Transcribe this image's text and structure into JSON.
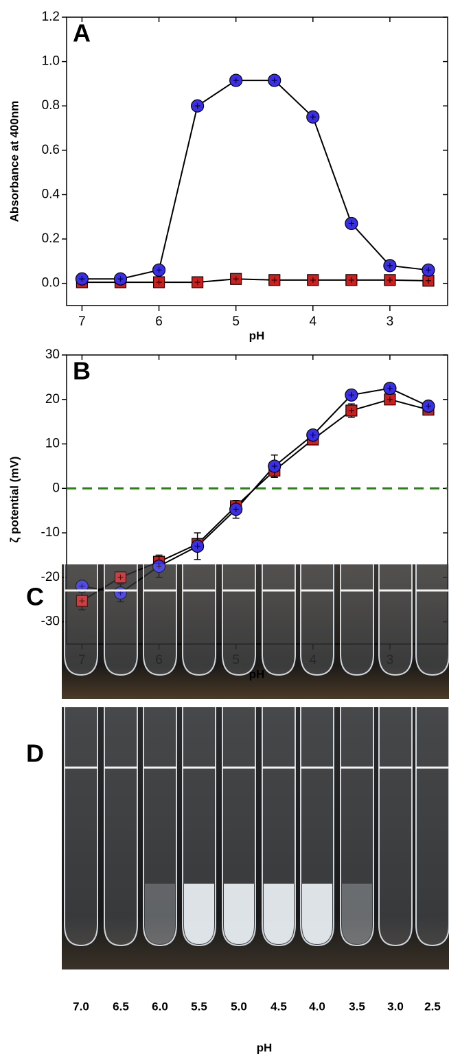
{
  "chart_data": [
    {
      "type": "line",
      "panel": "A",
      "x_label": "pH",
      "y_label": "Absorbance at 400nm",
      "x": [
        7,
        6.5,
        6,
        5.5,
        5,
        4.5,
        4,
        3.5,
        3,
        2.5
      ],
      "xlim": [
        7.2,
        2.25
      ],
      "xticks": [
        7,
        6,
        5,
        4,
        3
      ],
      "ylim": [
        -0.1,
        1.2
      ],
      "yticks": [
        {
          "value": 0,
          "label": "0.0"
        },
        0.2,
        0.4,
        0.6,
        0.8,
        {
          "value": 1,
          "label": "1.0"
        },
        1.2
      ],
      "series": [
        {
          "marker": "square",
          "color": "#cc2020",
          "values": [
            0.005,
            0.005,
            0.005,
            0.005,
            0.02,
            0.015,
            0.015,
            0.015,
            0.015,
            0.012
          ],
          "errors": [
            0.01,
            0.01,
            0.008,
            0.008,
            0.012,
            0.01,
            0.008,
            0.01,
            0.008,
            0.01
          ]
        },
        {
          "marker": "circle",
          "color": "#3a2fe6",
          "values": [
            0.02,
            0.02,
            0.06,
            0.8,
            0.915,
            0.915,
            0.75,
            0.27,
            0.08,
            0.06
          ],
          "errors": [
            0.01,
            0.01,
            0.01,
            0.015,
            0.02,
            0.02,
            0.015,
            0.012,
            0.01,
            0.01
          ]
        }
      ]
    },
    {
      "type": "line",
      "panel": "B",
      "x_label": "pH",
      "y_label": "ζ potential (mV)",
      "x": [
        7,
        6.5,
        6,
        5.5,
        5,
        4.5,
        4,
        3.5,
        3,
        2.5
      ],
      "xlim": [
        7.2,
        2.25
      ],
      "xticks": [
        7,
        6,
        5,
        4,
        3
      ],
      "ylim": [
        -35,
        30
      ],
      "yticks": [
        -30,
        -20,
        -10,
        0,
        10,
        20,
        30
      ],
      "refline": 0,
      "refline_color": "#2e7d1e",
      "series": [
        {
          "marker": "square",
          "color": "#cc2020",
          "values": [
            -25.3,
            -20,
            -16.5,
            -12.5,
            -4,
            4,
            11,
            17.5,
            20,
            17.7
          ],
          "errors": [
            2,
            1,
            1,
            1,
            1,
            1.5,
            1,
            1.5,
            1,
            1
          ]
        },
        {
          "marker": "circle",
          "color": "#3a2fe6",
          "values": [
            -22,
            -23.5,
            -17.5,
            -13,
            -4.7,
            5,
            12,
            21,
            22.5,
            18.5
          ],
          "errors": [
            1,
            2,
            2.5,
            3,
            2,
            2.5,
            1,
            1,
            1,
            1
          ]
        }
      ]
    }
  ],
  "photo_panels": {
    "labels": [
      "C",
      "D"
    ],
    "tube_ph": [
      "7.0",
      "6.5",
      "6.0",
      "5.5",
      "5.0",
      "4.5",
      "4.0",
      "3.5",
      "3.0",
      "2.5"
    ],
    "axis_label": "pH"
  }
}
